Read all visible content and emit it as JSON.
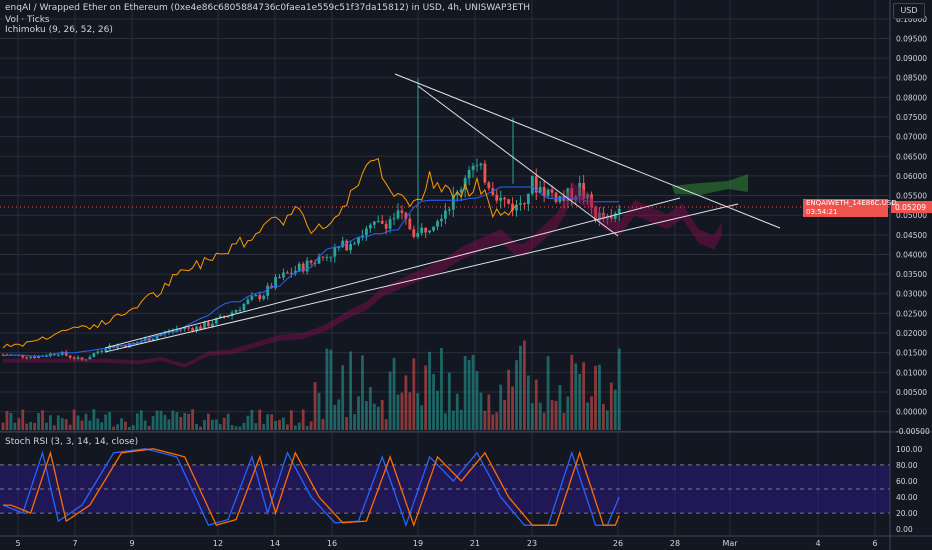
{
  "header": {
    "title": "enqAI / Wrapped Ether on Ethereum (0xe4e86c6805884736c0faea1e559c51f37da15812) in USD, 4h, UNISWAP3ETH",
    "vol_label": "Vol · Ticks",
    "ichimoku_label": "Ichimoku (9, 26, 52, 26)",
    "currency_button": "USD"
  },
  "price_tag": {
    "symbol": "ENQAIWETH_14E86C.USD",
    "countdown": "03:54:21",
    "price": "0.05209"
  },
  "colors": {
    "background": "#131722",
    "grid": "#2a2e39",
    "up": "#26a69a",
    "down": "#ef5350",
    "lagging_span": "#ff9800",
    "base_line": "#2962ff",
    "cloud_bear": "#880e4f",
    "cloud_bull": "#2e7d32",
    "trendline": "#e0e3eb",
    "stoch_k": "#2962ff",
    "stoch_d": "#ff6d00",
    "stoch_band": "#311b92"
  },
  "chart_data": [
    {
      "type": "candlestick",
      "title": "enqAI / Wrapped Ether on Ethereum (0xe4e86c6805884736c0faea1e559c51f37da15812) in USD, 4h, UNISWAP3ETH",
      "x_ticks": [
        "5",
        "7",
        "9",
        "12",
        "14",
        "16",
        "19",
        "21",
        "23",
        "26",
        "28",
        "Mar",
        "4",
        "6"
      ],
      "y_ticks": [
        "0.10000",
        "0.09500",
        "0.09000",
        "0.08500",
        "0.08000",
        "0.07500",
        "0.07000",
        "0.06500",
        "0.06000",
        "0.05500",
        "0.05000",
        "0.04500",
        "0.04000",
        "0.03500",
        "0.03000",
        "0.02500",
        "0.02000",
        "0.01500",
        "0.01000",
        "0.00500",
        "0.00000",
        "-0.00500"
      ],
      "ylim": [
        -0.0052,
        0.1025
      ],
      "current_price": 0.05209,
      "price_keyframes": [
        [
          0,
          0.0145
        ],
        [
          8,
          0.014
        ],
        [
          14,
          0.015
        ],
        [
          20,
          0.013
        ],
        [
          26,
          0.0165
        ],
        [
          32,
          0.017
        ],
        [
          38,
          0.019
        ],
        [
          44,
          0.021
        ],
        [
          50,
          0.0215
        ],
        [
          56,
          0.024
        ],
        [
          62,
          0.028
        ],
        [
          66,
          0.03
        ],
        [
          70,
          0.034
        ],
        [
          76,
          0.037
        ],
        [
          80,
          0.039
        ],
        [
          86,
          0.042
        ],
        [
          90,
          0.045
        ],
        [
          96,
          0.048
        ],
        [
          100,
          0.05
        ],
        [
          105,
          0.045
        ],
        [
          110,
          0.05
        ],
        [
          115,
          0.055
        ],
        [
          118,
          0.063
        ],
        [
          122,
          0.06
        ],
        [
          126,
          0.054
        ],
        [
          130,
          0.052
        ],
        [
          134,
          0.058
        ],
        [
          138,
          0.056
        ],
        [
          142,
          0.054
        ],
        [
          146,
          0.057
        ],
        [
          150,
          0.05
        ],
        [
          154,
          0.048
        ],
        [
          156,
          0.052
        ]
      ],
      "volume_ticks": [
        "0.00500",
        "0.00000",
        "-0.00500"
      ]
    },
    {
      "type": "line",
      "title": "Stoch RSI (3, 3, 14, 14, close)",
      "y_ticks": [
        "100.00",
        "80.00",
        "60.00",
        "40.00",
        "20.00",
        "0.00"
      ],
      "ylim": [
        -6,
        106
      ],
      "band": [
        20,
        80
      ],
      "k_peaks": [
        [
          0,
          30
        ],
        [
          5,
          20
        ],
        [
          10,
          95
        ],
        [
          14,
          10
        ],
        [
          20,
          30
        ],
        [
          28,
          95
        ],
        [
          36,
          100
        ],
        [
          44,
          90
        ],
        [
          52,
          5
        ],
        [
          57,
          12
        ],
        [
          63,
          90
        ],
        [
          67,
          20
        ],
        [
          72,
          95
        ],
        [
          78,
          40
        ],
        [
          84,
          8
        ],
        [
          90,
          10
        ],
        [
          96,
          90
        ],
        [
          102,
          5
        ],
        [
          108,
          90
        ],
        [
          114,
          60
        ],
        [
          120,
          95
        ],
        [
          126,
          40
        ],
        [
          132,
          5
        ],
        [
          138,
          5
        ],
        [
          144,
          95
        ],
        [
          150,
          5
        ],
        [
          153,
          5
        ],
        [
          156,
          40
        ]
      ]
    }
  ],
  "stoch_label": "Stoch RSI (3, 3, 14, 14, close)"
}
